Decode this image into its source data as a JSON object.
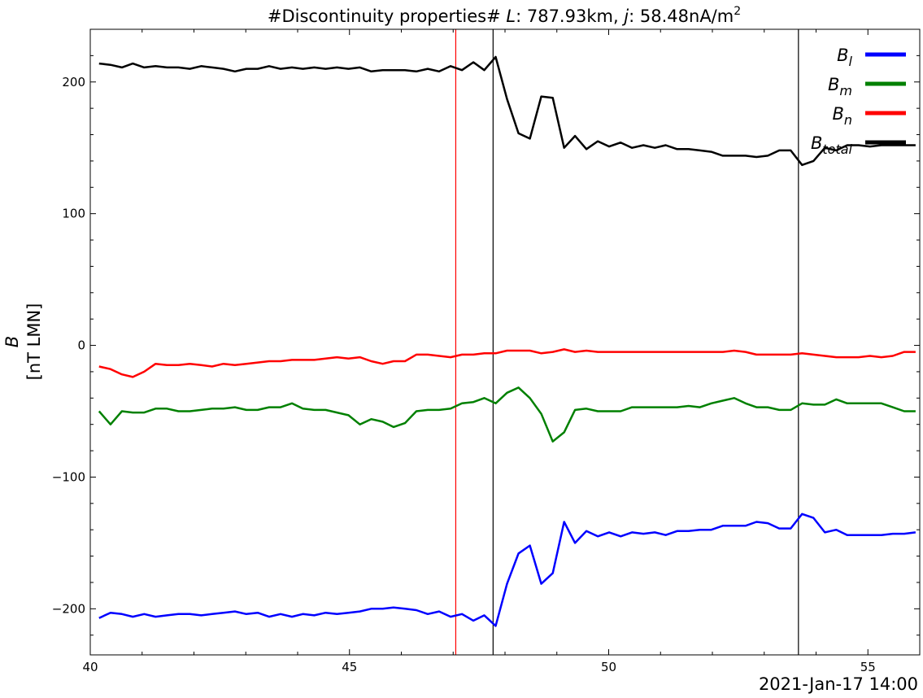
{
  "chart_data": {
    "type": "line",
    "title": {
      "prefix": "#Discontinuity properties# ",
      "l_symbol": "L",
      "l_value": ": 787.93km, ",
      "j_symbol": "j",
      "j_value": ": 58.48nA/m",
      "j_exp": "2"
    },
    "ylabel": {
      "symbol": "B",
      "units": "[nT LMN]"
    },
    "date_label": "2021-Jan-17 14:00",
    "xlim": [
      40,
      56
    ],
    "ylim": [
      -235,
      240
    ],
    "xticks": [
      {
        "value": 40,
        "label": "40"
      },
      {
        "value": 45,
        "label": "45"
      },
      {
        "value": 50,
        "label": "50"
      },
      {
        "value": 55,
        "label": "55"
      }
    ],
    "yticks": [
      {
        "value": 200,
        "label": "200"
      },
      {
        "value": 100,
        "label": "100"
      },
      {
        "value": 0,
        "label": "0"
      },
      {
        "value": -100,
        "label": "−100"
      },
      {
        "value": -200,
        "label": "−200"
      }
    ],
    "vlines": [
      {
        "x": 47.05,
        "color": "#ff0000"
      },
      {
        "x": 47.77,
        "color": "#000000"
      },
      {
        "x": 53.66,
        "color": "#000000"
      }
    ],
    "legend": {
      "placement": "top-right",
      "items": [
        {
          "base": "B",
          "sub": "l",
          "color": "#0000ff"
        },
        {
          "base": "B",
          "sub": "m",
          "color": "#008000"
        },
        {
          "base": "B",
          "sub": "n",
          "color": "#ff0000"
        },
        {
          "base": "B",
          "sub": "total",
          "color": "#000000"
        }
      ]
    },
    "x": [
      40.17,
      40.39,
      40.61,
      40.82,
      41.04,
      41.26,
      41.48,
      41.7,
      41.92,
      42.14,
      42.35,
      42.57,
      42.79,
      43.01,
      43.23,
      43.45,
      43.67,
      43.89,
      44.1,
      44.32,
      44.54,
      44.76,
      44.98,
      45.2,
      45.42,
      45.64,
      45.85,
      46.07,
      46.29,
      46.51,
      46.73,
      46.95,
      47.17,
      47.39,
      47.6,
      47.82,
      48.04,
      48.26,
      48.48,
      48.7,
      48.92,
      49.14,
      49.35,
      49.57,
      49.79,
      50.01,
      50.23,
      50.45,
      50.67,
      50.89,
      51.1,
      51.32,
      51.54,
      51.76,
      51.98,
      52.2,
      52.42,
      52.64,
      52.85,
      53.07,
      53.29,
      53.51,
      53.73,
      53.95,
      54.17,
      54.39,
      54.6,
      54.82,
      55.04,
      55.26,
      55.48,
      55.7,
      55.92
    ],
    "series": [
      {
        "name": "B_l",
        "color": "#0000ff",
        "values": [
          -207,
          -203,
          -204,
          -206,
          -204,
          -206,
          -205,
          -204,
          -204,
          -205,
          -204,
          -203,
          -202,
          -204,
          -203,
          -206,
          -204,
          -206,
          -204,
          -205,
          -203,
          -204,
          -203,
          -202,
          -200,
          -200,
          -199,
          -200,
          -201,
          -204,
          -202,
          -206,
          -204,
          -209,
          -205,
          -213,
          -181,
          -158,
          -152,
          -181,
          -173,
          -134,
          -150,
          -141,
          -145,
          -142,
          -145,
          -142,
          -143,
          -142,
          -144,
          -141,
          -141,
          -140,
          -140,
          -137,
          -137,
          -137,
          -134,
          -135,
          -139,
          -139,
          -128,
          -131,
          -142,
          -140,
          -144,
          -144,
          -144,
          -144,
          -143,
          -143,
          -142
        ]
      },
      {
        "name": "B_m",
        "color": "#008000",
        "values": [
          -50,
          -60,
          -50,
          -51,
          -51,
          -48,
          -48,
          -50,
          -50,
          -49,
          -48,
          -48,
          -47,
          -49,
          -49,
          -47,
          -47,
          -44,
          -48,
          -49,
          -49,
          -51,
          -53,
          -60,
          -56,
          -58,
          -62,
          -59,
          -50,
          -49,
          -49,
          -48,
          -44,
          -43,
          -40,
          -44,
          -36,
          -32,
          -40,
          -52,
          -73,
          -66,
          -49,
          -48,
          -50,
          -50,
          -50,
          -47,
          -47,
          -47,
          -47,
          -47,
          -46,
          -47,
          -44,
          -42,
          -40,
          -44,
          -47,
          -47,
          -49,
          -49,
          -44,
          -45,
          -45,
          -41,
          -44,
          -44,
          -44,
          -44,
          -47,
          -50,
          -50
        ]
      },
      {
        "name": "B_n",
        "color": "#ff0000",
        "values": [
          -16,
          -18,
          -22,
          -24,
          -20,
          -14,
          -15,
          -15,
          -14,
          -15,
          -16,
          -14,
          -15,
          -14,
          -13,
          -12,
          -12,
          -11,
          -11,
          -11,
          -10,
          -9,
          -10,
          -9,
          -12,
          -14,
          -12,
          -12,
          -7,
          -7,
          -8,
          -9,
          -7,
          -7,
          -6,
          -6,
          -4,
          -4,
          -4,
          -6,
          -5,
          -3,
          -5,
          -4,
          -5,
          -5,
          -5,
          -5,
          -5,
          -5,
          -5,
          -5,
          -5,
          -5,
          -5,
          -5,
          -4,
          -5,
          -7,
          -7,
          -7,
          -7,
          -6,
          -7,
          -8,
          -9,
          -9,
          -9,
          -8,
          -9,
          -8,
          -5,
          -5
        ]
      },
      {
        "name": "B_total",
        "color": "#000000",
        "values": [
          214,
          213,
          211,
          214,
          211,
          212,
          211,
          211,
          210,
          212,
          211,
          210,
          208,
          210,
          210,
          212,
          210,
          211,
          210,
          211,
          210,
          211,
          210,
          211,
          208,
          209,
          209,
          209,
          208,
          210,
          208,
          212,
          209,
          215,
          209,
          219,
          187,
          161,
          157,
          189,
          188,
          150,
          159,
          149,
          155,
          151,
          154,
          150,
          152,
          150,
          152,
          149,
          149,
          148,
          147,
          144,
          144,
          144,
          143,
          144,
          148,
          148,
          137,
          140,
          150,
          148,
          152,
          152,
          151,
          152,
          152,
          152,
          152
        ]
      }
    ]
  }
}
